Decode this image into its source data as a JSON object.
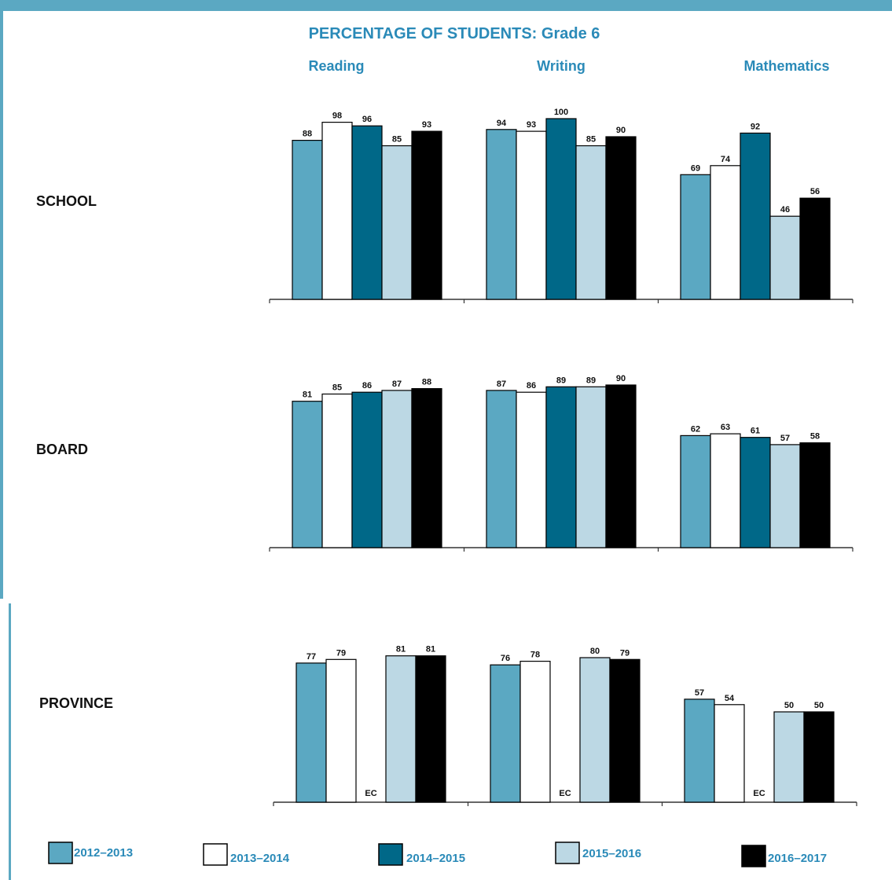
{
  "chart_data": {
    "type": "bar",
    "title": "PERCENTAGE OF STUDENTS: Grade 6",
    "subjects": [
      "Reading",
      "Writing",
      "Mathematics"
    ],
    "groups": [
      {
        "name": "SCHOOL",
        "values": [
          [
            88,
            98,
            96,
            85,
            93
          ],
          [
            94,
            93,
            100,
            85,
            90
          ],
          [
            69,
            74,
            92,
            46,
            56
          ]
        ]
      },
      {
        "name": "BOARD",
        "values": [
          [
            81,
            85,
            86,
            87,
            88
          ],
          [
            87,
            86,
            89,
            89,
            90
          ],
          [
            62,
            63,
            61,
            57,
            58
          ]
        ]
      },
      {
        "name": "PROVINCE",
        "values": [
          [
            77,
            79,
            null,
            81,
            81
          ],
          [
            76,
            78,
            null,
            80,
            79
          ],
          [
            57,
            54,
            null,
            50,
            50
          ]
        ],
        "missing_label": "EC"
      }
    ],
    "series": [
      {
        "name": "2012–2013",
        "color": "#5ba8c2"
      },
      {
        "name": "2013–2014",
        "color": "#ffffff"
      },
      {
        "name": "2014–2015",
        "color": "#006888"
      },
      {
        "name": "2015–2016",
        "color": "#bcd8e4"
      },
      {
        "name": "2016–2017",
        "color": "#000000"
      }
    ],
    "ylim": [
      0,
      100
    ],
    "legend_position": "bottom"
  }
}
